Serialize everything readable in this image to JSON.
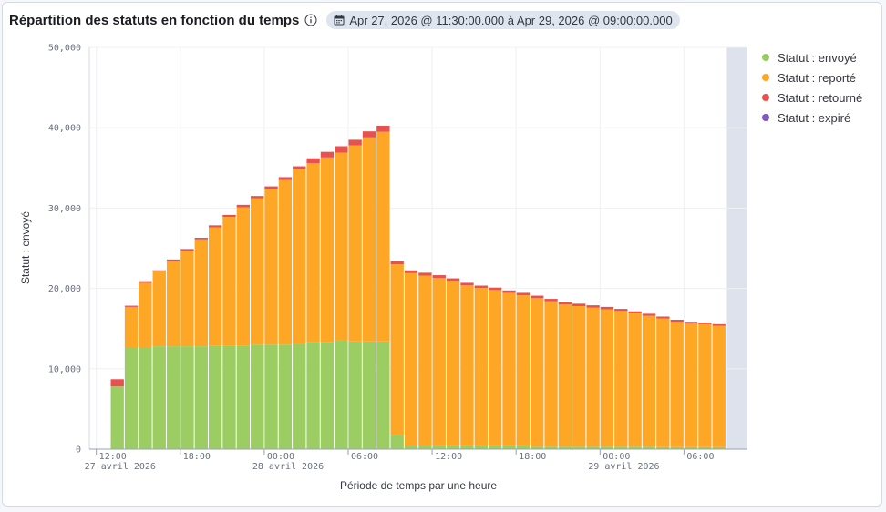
{
  "header": {
    "title": "Répartition des statuts en fonction du temps",
    "time_range": "Apr 27, 2026 @ 11:30:00.000 à Apr 29, 2026 @ 09:00:00.000"
  },
  "colors": {
    "envoye": "#9bcd63",
    "reporte": "#fea726",
    "retourne": "#e7514f",
    "expire": "#7e58be",
    "out_of_range": "#dde2ec"
  },
  "legend": [
    {
      "label": "Statut : envoyé",
      "color": "#9bcd63"
    },
    {
      "label": "Statut : reporté",
      "color": "#fea726"
    },
    {
      "label": "Statut : retourné",
      "color": "#e7514f"
    },
    {
      "label": "Statut : expiré",
      "color": "#7e58be"
    }
  ],
  "chart_data": {
    "type": "bar",
    "stacked": true,
    "xlabel": "Période de temps par une heure",
    "ylabel": "Statut : envoyé",
    "ylim": [
      0,
      50000
    ],
    "y_ticks": [
      "0",
      "10,000",
      "20,000",
      "30,000",
      "40,000",
      "50,000"
    ],
    "y_tick_values": [
      0,
      10000,
      20000,
      30000,
      40000,
      50000
    ],
    "x_domain_hours": [
      11.5,
      33
    ],
    "x_ticks": [
      {
        "hour": 12,
        "label": "12:00",
        "sublabel": "27 avril 2026"
      },
      {
        "hour": 18,
        "label": "18:00",
        "sublabel": ""
      },
      {
        "hour": 24,
        "label": "00:00",
        "sublabel": "28 avril 2026"
      },
      {
        "hour": 30,
        "label": "06:00",
        "sublabel": ""
      },
      {
        "hour": 36,
        "label": "12:00",
        "sublabel": ""
      },
      {
        "hour": 42,
        "label": "18:00",
        "sublabel": ""
      },
      {
        "hour": 48,
        "label": "00:00",
        "sublabel": "29 avril 2026"
      },
      {
        "hour": 54,
        "label": "06:00",
        "sublabel": ""
      }
    ],
    "grid": true,
    "legend_position": "right",
    "series_order": [
      "Statut : envoyé",
      "Statut : reporté",
      "Statut : retourné",
      "Statut : expiré"
    ],
    "buckets": [
      {
        "hour": 13,
        "envoye": 7800,
        "reporte": 0,
        "retourne": 900,
        "expire": 0
      },
      {
        "hour": 14,
        "envoye": 12700,
        "reporte": 5000,
        "retourne": 150,
        "expire": 0
      },
      {
        "hour": 15,
        "envoye": 12700,
        "reporte": 8000,
        "retourne": 200,
        "expire": 0
      },
      {
        "hour": 16,
        "envoye": 12800,
        "reporte": 9300,
        "retourne": 150,
        "expire": 0
      },
      {
        "hour": 17,
        "envoye": 12800,
        "reporte": 10600,
        "retourne": 200,
        "expire": 0
      },
      {
        "hour": 18,
        "envoye": 12800,
        "reporte": 11900,
        "retourne": 200,
        "expire": 0
      },
      {
        "hour": 19,
        "envoye": 12800,
        "reporte": 13300,
        "retourne": 200,
        "expire": 0
      },
      {
        "hour": 20,
        "envoye": 12900,
        "reporte": 14700,
        "retourne": 250,
        "expire": 0
      },
      {
        "hour": 21,
        "envoye": 12900,
        "reporte": 16000,
        "retourne": 250,
        "expire": 0
      },
      {
        "hour": 22,
        "envoye": 12900,
        "reporte": 17200,
        "retourne": 300,
        "expire": 0
      },
      {
        "hour": 23,
        "envoye": 13000,
        "reporte": 18200,
        "retourne": 300,
        "expire": 0
      },
      {
        "hour": 24,
        "envoye": 13000,
        "reporte": 19400,
        "retourne": 300,
        "expire": 0
      },
      {
        "hour": 25,
        "envoye": 13000,
        "reporte": 20500,
        "retourne": 350,
        "expire": 0
      },
      {
        "hour": 26,
        "envoye": 13100,
        "reporte": 21700,
        "retourne": 400,
        "expire": 0
      },
      {
        "hour": 27,
        "envoye": 13300,
        "reporte": 22300,
        "retourne": 600,
        "expire": 0
      },
      {
        "hour": 28,
        "envoye": 13300,
        "reporte": 23000,
        "retourne": 700,
        "expire": 0
      },
      {
        "hour": 29,
        "envoye": 13500,
        "reporte": 23400,
        "retourne": 800,
        "expire": 0
      },
      {
        "hour": 30,
        "envoye": 13400,
        "reporte": 24400,
        "retourne": 700,
        "expire": 0
      },
      {
        "hour": 31,
        "envoye": 13400,
        "reporte": 25400,
        "retourne": 750,
        "expire": 0
      },
      {
        "hour": 32,
        "envoye": 13400,
        "reporte": 26100,
        "retourne": 750,
        "expire": 0
      },
      {
        "hour": 33,
        "envoye": 1800,
        "reporte": 21200,
        "retourne": 400,
        "expire": 0
      },
      {
        "hour": 34,
        "envoye": 400,
        "reporte": 21500,
        "retourne": 350,
        "expire": 0
      },
      {
        "hour": 35,
        "envoye": 400,
        "reporte": 21200,
        "retourne": 350,
        "expire": 0
      },
      {
        "hour": 36,
        "envoye": 350,
        "reporte": 20950,
        "retourne": 350,
        "expire": 0
      },
      {
        "hour": 37,
        "envoye": 350,
        "reporte": 20600,
        "retourne": 300,
        "expire": 0
      },
      {
        "hour": 38,
        "envoye": 350,
        "reporte": 20050,
        "retourne": 300,
        "expire": 0
      },
      {
        "hour": 39,
        "envoye": 350,
        "reporte": 19700,
        "retourne": 300,
        "expire": 0
      },
      {
        "hour": 40,
        "envoye": 350,
        "reporte": 19450,
        "retourne": 300,
        "expire": 0
      },
      {
        "hour": 41,
        "envoye": 350,
        "reporte": 19100,
        "retourne": 300,
        "expire": 0
      },
      {
        "hour": 42,
        "envoye": 350,
        "reporte": 18800,
        "retourne": 300,
        "expire": 0
      },
      {
        "hour": 43,
        "envoye": 300,
        "reporte": 18500,
        "retourne": 300,
        "expire": 0
      },
      {
        "hour": 44,
        "envoye": 300,
        "reporte": 18100,
        "retourne": 300,
        "expire": 0
      },
      {
        "hour": 45,
        "envoye": 300,
        "reporte": 17700,
        "retourne": 300,
        "expire": 0
      },
      {
        "hour": 46,
        "envoye": 300,
        "reporte": 17500,
        "retourne": 300,
        "expire": 0
      },
      {
        "hour": 47,
        "envoye": 300,
        "reporte": 17300,
        "retourne": 300,
        "expire": 0
      },
      {
        "hour": 48,
        "envoye": 300,
        "reporte": 17100,
        "retourne": 300,
        "expire": 0
      },
      {
        "hour": 49,
        "envoye": 300,
        "reporte": 16900,
        "retourne": 250,
        "expire": 0
      },
      {
        "hour": 50,
        "envoye": 300,
        "reporte": 16600,
        "retourne": 250,
        "expire": 0
      },
      {
        "hour": 51,
        "envoye": 300,
        "reporte": 16300,
        "retourne": 250,
        "expire": 0
      },
      {
        "hour": 52,
        "envoye": 250,
        "reporte": 16000,
        "retourne": 250,
        "expire": 0
      },
      {
        "hour": 53,
        "envoye": 250,
        "reporte": 15600,
        "retourne": 250,
        "expire": 0
      },
      {
        "hour": 54,
        "envoye": 250,
        "reporte": 15400,
        "retourne": 200,
        "expire": 0
      },
      {
        "hour": 55,
        "envoye": 250,
        "reporte": 15300,
        "retourne": 200,
        "expire": 0
      },
      {
        "hour": 56,
        "envoye": 250,
        "reporte": 15100,
        "retourne": 200,
        "expire": 0
      }
    ]
  }
}
